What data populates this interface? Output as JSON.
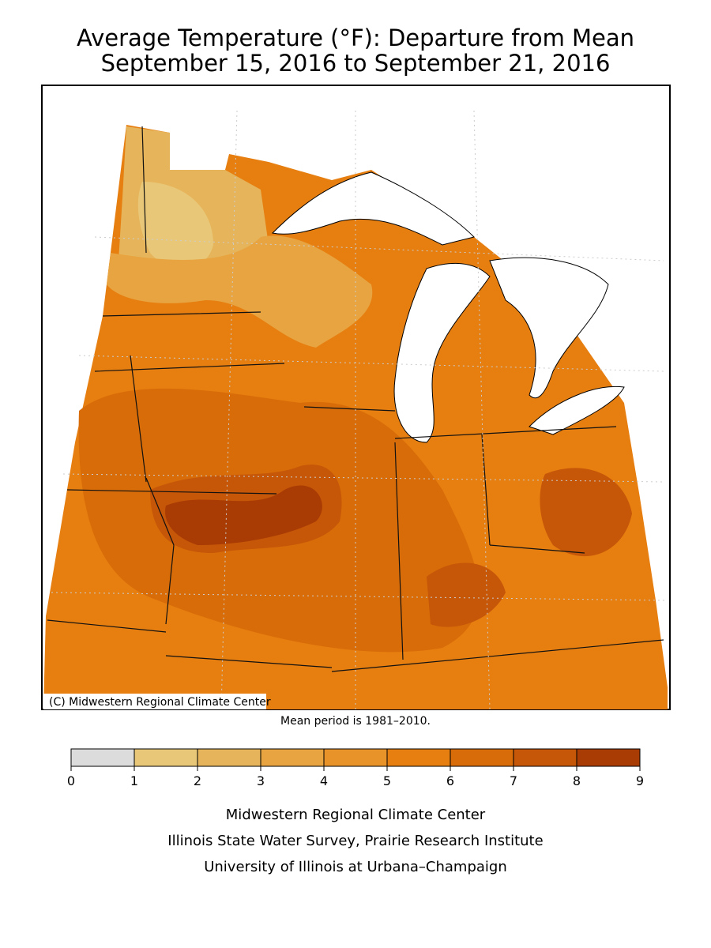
{
  "title": [
    "Average Temperature (°F): Departure from Mean",
    "September 15, 2016 to September 21, 2016"
  ],
  "copyright": "(C) Midwestern Regional Climate Center",
  "note": "Mean period is 1981–2010.",
  "legend": {
    "ticks": [
      0,
      1,
      2,
      3,
      4,
      5,
      6,
      7,
      8,
      9
    ],
    "colors": [
      "#dcdcdc",
      "#e8c878",
      "#e6b45a",
      "#e8a440",
      "#e8922a",
      "#e67e10",
      "#d86c08",
      "#c65608",
      "#a83c04"
    ]
  },
  "footer": [
    "Midwestern Regional Climate Center",
    "Illinois State Water Survey, Prairie Research Institute",
    "University of Illinois at Urbana–Champaign"
  ]
}
